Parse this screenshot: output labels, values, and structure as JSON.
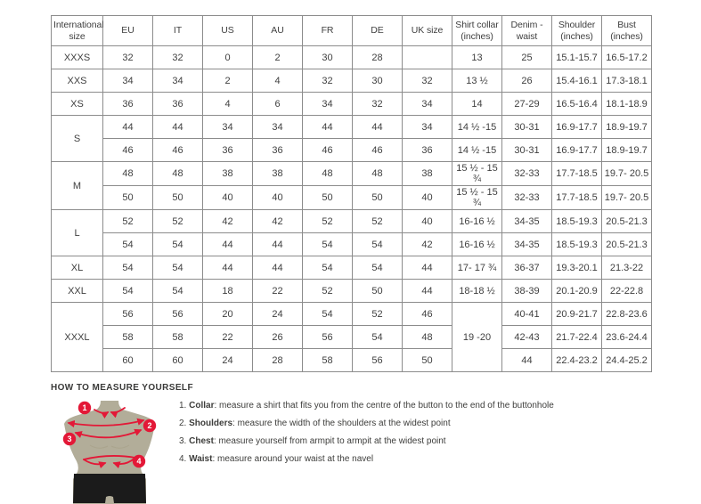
{
  "colors": {
    "accent_red": "#e31837",
    "body_color": "#b2ad99",
    "shorts_color": "#1b1b1b",
    "table_border": "#8c8c8c",
    "table_text": "#3f3f3f"
  },
  "table": {
    "headers": [
      "International size",
      "EU",
      "IT",
      "US",
      "AU",
      "FR",
      "DE",
      "UK size",
      "Shirt collar (inches)",
      "Denim - waist",
      "Shoulder (inches)",
      "Bust (inches)"
    ],
    "rows": [
      [
        "XXXS",
        "32",
        "32",
        "0",
        "2",
        "30",
        "28",
        "",
        "13",
        "25",
        "15.1-15.7",
        "16.5-17.2"
      ],
      [
        "XXS",
        "34",
        "34",
        "2",
        "4",
        "32",
        "30",
        "32",
        "13 ½",
        "26",
        "15.4-16.1",
        "17.3-18.1"
      ],
      [
        "XS",
        "36",
        "36",
        "4",
        "6",
        "34",
        "32",
        "34",
        "14",
        "27-29",
        "16.5-16.4",
        "18.1-18.9"
      ],
      [
        {
          "t": "S",
          "rs": 2
        },
        "44",
        "44",
        "34",
        "34",
        "44",
        "44",
        "34",
        "14 ½ -15",
        "30-31",
        "16.9-17.7",
        "18.9-19.7"
      ],
      [
        "46",
        "46",
        "36",
        "36",
        "46",
        "46",
        "36",
        "14 ½ -15",
        "30-31",
        "16.9-17.7",
        "18.9-19.7"
      ],
      [
        {
          "t": "M",
          "rs": 2
        },
        "48",
        "48",
        "38",
        "38",
        "48",
        "48",
        "38",
        "15 ½ - 15 ¾",
        "32-33",
        "17.7-18.5",
        "19.7- 20.5"
      ],
      [
        "50",
        "50",
        "40",
        "40",
        "50",
        "50",
        "40",
        "15 ½ - 15 ¾",
        "32-33",
        "17.7-18.5",
        "19.7- 20.5"
      ],
      [
        {
          "t": "L",
          "rs": 2
        },
        "52",
        "52",
        "42",
        "42",
        "52",
        "52",
        "40",
        "16-16 ½",
        "34-35",
        "18.5-19.3",
        "20.5-21.3"
      ],
      [
        "54",
        "54",
        "44",
        "44",
        "54",
        "54",
        "42",
        "16-16 ½",
        "34-35",
        "18.5-19.3",
        "20.5-21.3"
      ],
      [
        "XL",
        "54",
        "54",
        "44",
        "44",
        "54",
        "54",
        "44",
        "17- 17 ¾",
        "36-37",
        "19.3-20.1",
        "21.3-22"
      ],
      [
        "XXL",
        "54",
        "54",
        "18",
        "22",
        "52",
        "50",
        "44",
        "18-18 ½",
        "38-39",
        "20.1-20.9",
        "22-22.8"
      ],
      [
        {
          "t": "XXXL",
          "rs": 3
        },
        "56",
        "56",
        "20",
        "24",
        "54",
        "52",
        "46",
        {
          "t": "19 -20",
          "rs": 3
        },
        "40-41",
        "20.9-21.7",
        "22.8-23.6"
      ],
      [
        "58",
        "58",
        "22",
        "26",
        "56",
        "54",
        "48",
        "42-43",
        "21.7-22.4",
        "23.6-24.4"
      ],
      [
        "60",
        "60",
        "24",
        "28",
        "58",
        "56",
        "50",
        "44",
        "22.4-23.2",
        "24.4-25.2"
      ]
    ]
  },
  "measure": {
    "title": "HOW TO MEASURE YOURSELF",
    "badges": [
      "1",
      "2",
      "3",
      "4"
    ],
    "items": [
      {
        "num": "1. ",
        "label": "Collar",
        "text": ": measure a shirt that fits you from the centre of the button to the end of the buttonhole"
      },
      {
        "num": "2. ",
        "label": "Shoulders",
        "text": ": measure the width of the shoulders at the widest point"
      },
      {
        "num": "3. ",
        "label": "Chest",
        "text": ": measure yourself from armpit to armpit at the widest point"
      },
      {
        "num": "4. ",
        "label": "Waist",
        "text": ": measure around your waist at the navel"
      }
    ]
  }
}
